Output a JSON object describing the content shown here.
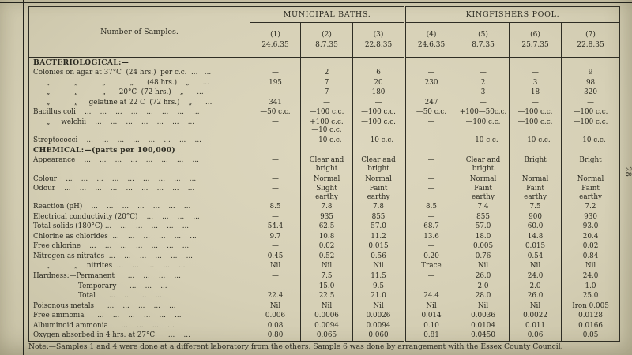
{
  "page": {
    "page_number": "28",
    "note": "Note:—Samples 1 and 4 were done at a different laboratory from the others.  Sample 6 was done by arrangement with the Essex County Council."
  },
  "table": {
    "corner_label": "Number of Samples.",
    "groups": [
      {
        "label": "MUNICIPAL BATHS.",
        "span": 3
      },
      {
        "label": "KINGFISHERS POOL.",
        "span": 4
      }
    ],
    "columns": [
      {
        "num": "(1)",
        "date": "24.6.35"
      },
      {
        "num": "(2)",
        "date": "8.7.35"
      },
      {
        "num": "(3)",
        "date": "22.8.35"
      },
      {
        "num": "(4)",
        "date": "24.6.35"
      },
      {
        "num": "(5)",
        "date": "8.7.35"
      },
      {
        "num": "(6)",
        "date": "25.7.35"
      },
      {
        "num": "(7)",
        "date": "22.8.35"
      }
    ],
    "sections": [
      {
        "title": "BACTERIOLOGICAL:—",
        "rows": [
          {
            "label": "Colonies on agar at 37°C  (24 hrs.)  per c.c.  ...   ...",
            "values": [
              "—",
              "2",
              "6",
              "—",
              "—",
              "—",
              "9"
            ]
          },
          {
            "label": "      „           „           „           „      (48 hrs.)    „      ...",
            "values": [
              "195",
              "7",
              "20",
              "230",
              "2",
              "3",
              "98"
            ]
          },
          {
            "label": "      „           „           „      20°C  (72 hrs.)    „      ...",
            "values": [
              "—",
              "7",
              "180",
              "—",
              "3",
              "18",
              "320"
            ]
          },
          {
            "label": "      „           „     gelatine at 22 C  (72 hrs.)    „      ...",
            "values": [
              "341",
              "—",
              "—",
              "247",
              "—",
              "—",
              "—"
            ]
          },
          {
            "label": "Bacillus coli    ...    ...    ...    ...    ...    ...    ...    ...",
            "values": [
              "—50 c.c.",
              "—100  c.c.",
              "—100  c.c.",
              "—50 c.c.",
              "+100—50c.c.",
              "—100  c.c.",
              "—100  c.c."
            ]
          },
          {
            "label": "      „     welchii    ...    ...    ...    ...    ...    ...    ...",
            "values": [
              "—",
              "+100 c.c.\n—10 c.c.",
              "—100  c.c.",
              "—",
              "—100  c.c.",
              "—100  c.c.",
              "—100 c.c."
            ]
          },
          {
            "label": "Streptococci    ...    ...    ...    ...    ...    ...    ...    ...",
            "values": [
              "—",
              "—10 c.c.",
              "—10 c.c.",
              "—",
              "—10 c.c.",
              "—10 c.c.",
              "—10 c.c."
            ]
          }
        ]
      },
      {
        "title": "CHEMICAL:—(parts per 100,000)",
        "rows": [
          {
            "label": "Appearance    ...    ...    ...    ...    ...    ...    ...    ...",
            "values": [
              "—",
              "Clear and\nbright",
              "Clear and\nbright",
              "—",
              "Clear and\nbright",
              "Bright",
              "Bright"
            ]
          },
          {
            "label": "Colour    ...    ...    ...    ...    ...    ...    ...    ...    ...",
            "values": [
              "—",
              "Normal",
              "Normal",
              "—",
              "Normal",
              "Normal",
              "Normal"
            ]
          },
          {
            "label": "Odour    ...    ...    ...    ...    ...    ...    ...    ...    ...",
            "values": [
              "—",
              "Slight\nearthy",
              "Faint\nearthy",
              "—",
              "Faint\nearthy",
              "Faint\nearthy",
              "Faint\nearthy"
            ]
          },
          {
            "label": "Reaction (pH)    ...    ...    ...    ...    ...    ...    ...",
            "values": [
              "8.5",
              "7.8",
              "7.8",
              "8.5",
              "7.4",
              "7.5",
              "7.2"
            ]
          },
          {
            "label": "Electrical conductivity (20°C)    ...    ...    ...    ...",
            "values": [
              "—",
              "935",
              "855",
              "—",
              "855",
              "900",
              "930"
            ]
          },
          {
            "label": "Total solids (180°C) ...    ...    ...    ...    ...    ...",
            "values": [
              "54.4",
              "62.5",
              "57.0",
              "68.7",
              "57.0",
              "60.0",
              "93.0"
            ]
          },
          {
            "label": "Chlorine as chlorides  ...    ...    ...    ...    ...    ...",
            "values": [
              "9.7",
              "10.8",
              "11.2",
              "13.6",
              "18.0",
              "14.8",
              "20.4"
            ]
          },
          {
            "label": "Free chlorine    ...    ...    ...    ...    ...    ...    ...",
            "values": [
              "—",
              "0.02",
              "0.015",
              "—",
              "0.005",
              "0.015",
              "0.02"
            ]
          },
          {
            "label": "Nitrogen as nitrates  ...    ...    ...    ...    ...    ...",
            "values": [
              "0.45",
              "0.52",
              "0.56",
              "0.20",
              "0.76",
              "0.54",
              "0.84"
            ]
          },
          {
            "label": "      „           „    nitrites  ...    ...    ...    ...    ...",
            "values": [
              "Nil",
              "Nil",
              "Nil",
              "Trace",
              "Nil",
              "Nil",
              "Nil"
            ]
          },
          {
            "label": "Hardness:—Permanent      ...    ...    ...    ...",
            "values": [
              "—",
              "7.5",
              "11.5",
              "—",
              "26.0",
              "24.0",
              "24.0"
            ]
          },
          {
            "label": "Temporary      ...    ...    ...",
            "indent": 1,
            "values": [
              "—",
              "15.0",
              "9.5",
              "—",
              "2.0",
              "2.0",
              "1.0"
            ]
          },
          {
            "label": "Total      ...    ...    ...    ...",
            "indent": 1,
            "values": [
              "22.4",
              "22.5",
              "21.0",
              "24.4",
              "28.0",
              "26.0",
              "25.0"
            ]
          },
          {
            "label": "Poisonous metals      ...    ...    ...    ...    ...",
            "values": [
              "Nil",
              "Nil",
              "Nil",
              "Nil",
              "Nil",
              "Nil",
              "Iron 0.005"
            ]
          },
          {
            "label": "Free ammonia      ...    ...    ...    ...    ...    ...",
            "values": [
              "0.006",
              "0.0006",
              "0.0026",
              "0.014",
              "0.0036",
              "0.0022",
              "0.0128"
            ]
          },
          {
            "label": "Albuminoid ammonia      ...    ...    ...    ...",
            "values": [
              "0.08",
              "0.0094",
              "0.0094",
              "0.10",
              "0.0104",
              "0.011",
              "0.0166"
            ]
          },
          {
            "label": "Oxygen absorbed in 4 hrs. at 27°C      ...    ...",
            "values": [
              "0.80",
              "0.065",
              "0.060",
              "0.81",
              "0.0450",
              "0.06",
              "0.05"
            ]
          }
        ]
      }
    ]
  }
}
